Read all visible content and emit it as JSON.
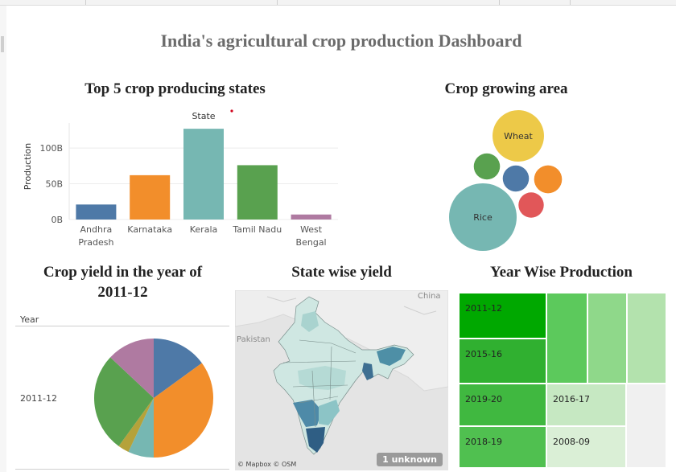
{
  "dashboard_title": "India's agricultural crop production Dashboard",
  "colors": {
    "blue": "#4e79a7",
    "orange": "#f28e2b",
    "teal": "#76b7b2",
    "green": "#59a14f",
    "purple": "#af7aa1",
    "yellow": "#edc948",
    "red": "#e15759",
    "olive": "#b5a23a"
  },
  "chart_data": [
    {
      "id": "top5",
      "type": "bar",
      "title": "Top 5 crop producing states",
      "legend_title": "State",
      "ylabel": "Production",
      "categories": [
        "Andhra Pradesh",
        "Karnataka",
        "Kerala",
        "Tamil Nadu",
        "West Bengal"
      ],
      "category_lines": [
        [
          "Andhra",
          "Pradesh"
        ],
        [
          "Karnataka"
        ],
        [
          "Kerala"
        ],
        [
          "Tamil Nadu"
        ],
        [
          "West",
          "Bengal"
        ]
      ],
      "values": [
        21,
        62,
        127,
        76,
        7
      ],
      "colors": [
        "#4e79a7",
        "#f28e2b",
        "#76b7b2",
        "#59a14f",
        "#af7aa1"
      ],
      "yticks": [
        {
          "value": 0,
          "label": "0B"
        },
        {
          "value": 50,
          "label": "50B"
        },
        {
          "value": 100,
          "label": "100B"
        }
      ],
      "ylim": [
        0,
        135
      ],
      "grid": true
    },
    {
      "id": "area",
      "type": "bubble",
      "title": "Crop growing area",
      "bubbles": [
        {
          "name": "Rice",
          "label": "Rice",
          "value": 100,
          "color": "#76b7b2"
        },
        {
          "name": "Wheat",
          "label": "Wheat",
          "value": 58,
          "color": "#edc948"
        },
        {
          "name": "crop-3",
          "label": "",
          "value": 17,
          "color": "#f28e2b"
        },
        {
          "name": "crop-4",
          "label": "",
          "value": 15,
          "color": "#59a14f"
        },
        {
          "name": "crop-5",
          "label": "",
          "value": 15,
          "color": "#4e79a7"
        },
        {
          "name": "crop-6",
          "label": "",
          "value": 14,
          "color": "#e15759"
        }
      ]
    },
    {
      "id": "yield",
      "type": "pie",
      "title": "Crop yield in the year of 2011-12",
      "title_lines": [
        "Crop yield in the year of",
        "2011-12"
      ],
      "row_header": "Year",
      "row_label": "2011-12",
      "slices": [
        {
          "value": 15,
          "color": "#4e79a7"
        },
        {
          "value": 35,
          "color": "#f28e2b"
        },
        {
          "value": 7,
          "color": "#76b7b2"
        },
        {
          "value": 3,
          "color": "#b5a23a"
        },
        {
          "value": 27,
          "color": "#59a14f"
        },
        {
          "value": 13,
          "color": "#af7aa1"
        }
      ]
    },
    {
      "id": "map",
      "type": "map",
      "title": "State wise yield",
      "labels": {
        "china": "China",
        "pakistan": "Pakistan"
      },
      "credit": "© Mapbox © OSM",
      "unknown_badge": "1 unknown"
    },
    {
      "id": "years",
      "type": "treemap",
      "title": "Year Wise Production",
      "cells": [
        {
          "label": "2011-12",
          "color": "#00a800"
        },
        {
          "label": "2015-16",
          "color": "#30b030"
        },
        {
          "label": "2019-20",
          "color": "#40b840"
        },
        {
          "label": "2018-19",
          "color": "#50c050"
        },
        {
          "label": "",
          "color": "#5cc95c"
        },
        {
          "label": "",
          "color": "#8fd88a"
        },
        {
          "label": "",
          "color": "#b3e2ad"
        },
        {
          "label": "2016-17",
          "color": "#c6e8c2"
        },
        {
          "label": "2008-09",
          "color": "#daefd6"
        },
        {
          "label": "",
          "color": "#f0f0f0"
        }
      ]
    }
  ]
}
